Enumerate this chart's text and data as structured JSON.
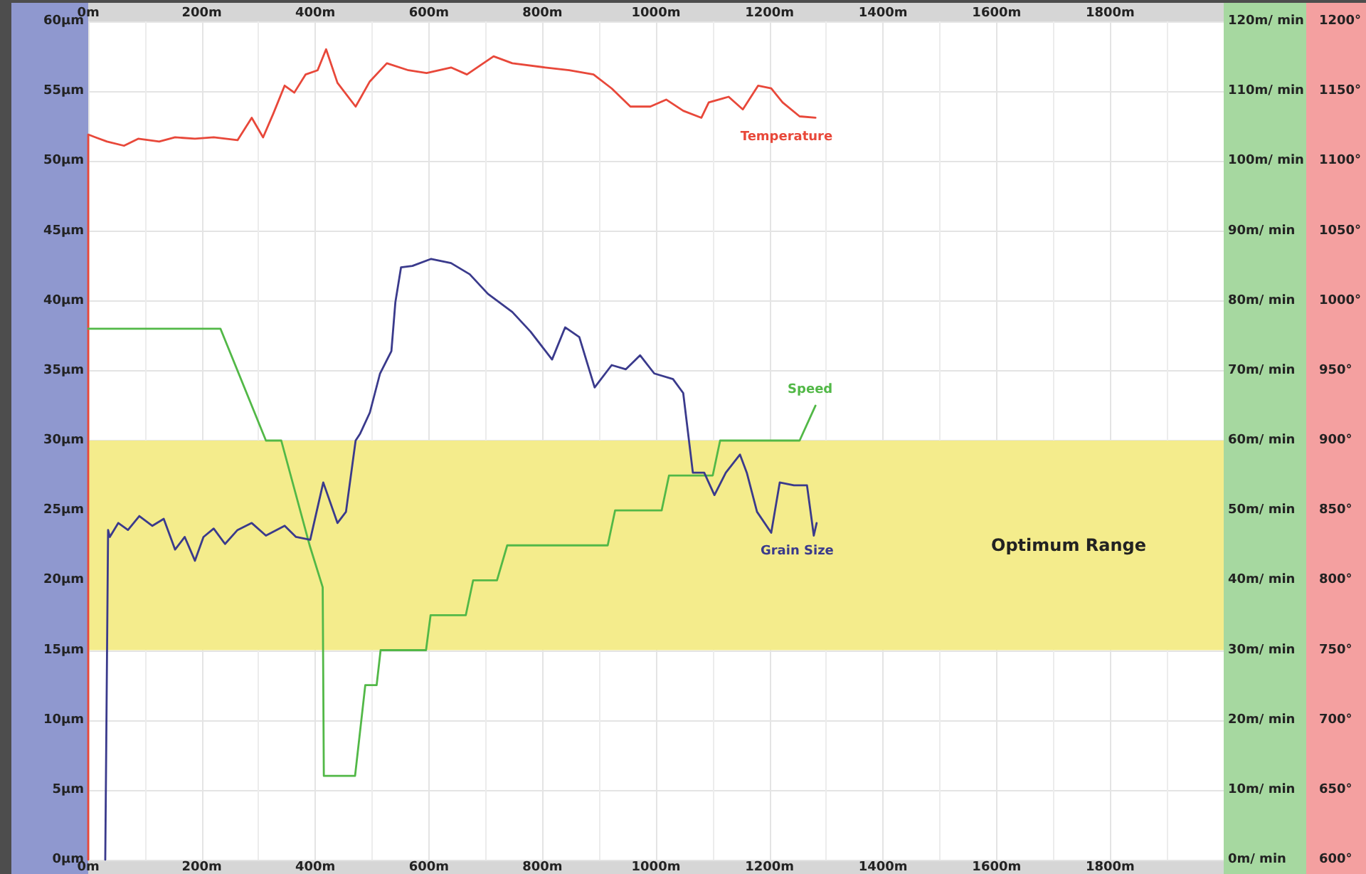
{
  "chart_data": {
    "type": "line",
    "xlim": [
      0,
      2000
    ],
    "xticks": [
      {
        "value": 0,
        "label": "0m"
      },
      {
        "value": 200,
        "label": "200m"
      },
      {
        "value": 400,
        "label": "400m"
      },
      {
        "value": 600,
        "label": "600m"
      },
      {
        "value": 800,
        "label": "800m"
      },
      {
        "value": 1000,
        "label": "1000m"
      },
      {
        "value": 1200,
        "label": "1200m"
      },
      {
        "value": 1400,
        "label": "1400m"
      },
      {
        "value": 1600,
        "label": "1600m"
      },
      {
        "value": 1800,
        "label": "1800m"
      }
    ],
    "x2lim": [
      0,
      2000
    ],
    "x2ticks": [
      {
        "value": 0,
        "label": "0m"
      },
      {
        "value": 200,
        "label": "200m"
      },
      {
        "value": 400,
        "label": "400m"
      },
      {
        "value": 600,
        "label": "600m"
      },
      {
        "value": 800,
        "label": "800m"
      },
      {
        "value": 1000,
        "label": "1000m"
      },
      {
        "value": 1200,
        "label": "1200m"
      },
      {
        "value": 1400,
        "label": "1400m"
      },
      {
        "value": 1600,
        "label": "1600m"
      },
      {
        "value": 1800,
        "label": "1800m"
      }
    ],
    "ylim": [
      0,
      60
    ],
    "yticks": [
      {
        "value": 0,
        "label": "0µm"
      },
      {
        "value": 5,
        "label": "5µm"
      },
      {
        "value": 10,
        "label": "10µm"
      },
      {
        "value": 15,
        "label": "15µm"
      },
      {
        "value": 20,
        "label": "20µm"
      },
      {
        "value": 25,
        "label": "25µm"
      },
      {
        "value": 30,
        "label": "30µm"
      },
      {
        "value": 35,
        "label": "35µm"
      },
      {
        "value": 40,
        "label": "40µm"
      },
      {
        "value": 45,
        "label": "45µm"
      },
      {
        "value": 50,
        "label": "50µm"
      },
      {
        "value": 55,
        "label": "55µm"
      },
      {
        "value": 60,
        "label": "60µm"
      }
    ],
    "y2lim": [
      0,
      120
    ],
    "y2ticks": [
      {
        "value": 0,
        "label": "0m/ min"
      },
      {
        "value": 10,
        "label": "10m/ min"
      },
      {
        "value": 20,
        "label": "20m/ min"
      },
      {
        "value": 30,
        "label": "30m/ min"
      },
      {
        "value": 40,
        "label": "40m/ min"
      },
      {
        "value": 50,
        "label": "50m/ min"
      },
      {
        "value": 60,
        "label": "60m/ min"
      },
      {
        "value": 70,
        "label": "70m/ min"
      },
      {
        "value": 80,
        "label": "80m/ min"
      },
      {
        "value": 90,
        "label": "90m/ min"
      },
      {
        "value": 100,
        "label": "100m/ min"
      },
      {
        "value": 110,
        "label": "110m/ min"
      },
      {
        "value": 120,
        "label": "120m/ min"
      }
    ],
    "y3lim": [
      600,
      1200
    ],
    "y3ticks": [
      {
        "value": 600,
        "label": "600°"
      },
      {
        "value": 650,
        "label": "650°"
      },
      {
        "value": 700,
        "label": "700°"
      },
      {
        "value": 750,
        "label": "750°"
      },
      {
        "value": 800,
        "label": "800°"
      },
      {
        "value": 850,
        "label": "850°"
      },
      {
        "value": 900,
        "label": "900°"
      },
      {
        "value": 950,
        "label": "950°"
      },
      {
        "value": 1000,
        "label": "1000°"
      },
      {
        "value": 1050,
        "label": "1050°"
      },
      {
        "value": 1100,
        "label": "1100°"
      },
      {
        "value": 1150,
        "label": "1150°"
      },
      {
        "value": 1200,
        "label": "1200°"
      }
    ],
    "bands": [
      {
        "axis": "y",
        "from": 15,
        "to": 30,
        "label": "Optimum Range",
        "color": "#f4ec8c"
      }
    ],
    "grid": true,
    "legend": false,
    "marker": "none",
    "line_style": "solid",
    "series": [
      {
        "name": "Temperature",
        "color": "#e8483a",
        "axis": "y3",
        "x": [
          0,
          0,
          13,
          33,
          63,
          88,
          125,
          153,
          188,
          221,
          263,
          288,
          308,
          326,
          346,
          363,
          383,
          404,
          419,
          439,
          471,
          496,
          526,
          564,
          596,
          639,
          667,
          714,
          747,
          805,
          847,
          890,
          922,
          955,
          990,
          1018,
          1048,
          1080,
          1093,
          1128,
          1153,
          1180,
          1203,
          1223,
          1253,
          1281
        ],
        "values": [
          600,
          1119,
          1117,
          1114,
          1111,
          1116,
          1114,
          1117,
          1116,
          1117,
          1115,
          1131,
          1117,
          1134,
          1154,
          1149,
          1162,
          1165,
          1180,
          1156,
          1139,
          1157,
          1170,
          1165,
          1163,
          1167,
          1162,
          1175,
          1170,
          1167,
          1165,
          1162,
          1152,
          1139,
          1139,
          1144,
          1136,
          1131,
          1142,
          1146,
          1137,
          1154,
          1152,
          1142,
          1132,
          1131
        ]
      },
      {
        "name": "Speed",
        "color": "#52b847",
        "axis": "y2",
        "x": [
          0,
          233,
          313,
          340,
          390,
          413,
          415,
          470,
          488,
          508,
          515,
          595,
          603,
          665,
          678,
          720,
          738,
          915,
          928,
          1010,
          1023,
          1100,
          1113,
          1253,
          1281
        ],
        "values": [
          76,
          76,
          60,
          60,
          45,
          39,
          12,
          12,
          25,
          25,
          30,
          30,
          35,
          35,
          40,
          40,
          45,
          45,
          50,
          50,
          55,
          55,
          60,
          60,
          65
        ]
      },
      {
        "name": "Grain Size",
        "color": "#3a3a8c",
        "axis": "y",
        "x": [
          30,
          35,
          38,
          53,
          70,
          90,
          113,
          133,
          153,
          170,
          188,
          203,
          221,
          241,
          263,
          288,
          313,
          346,
          366,
          391,
          414,
          439,
          454,
          471,
          479,
          496,
          514,
          534,
          541,
          551,
          571,
          604,
          639,
          672,
          704,
          747,
          779,
          817,
          840,
          865,
          892,
          922,
          947,
          972,
          997,
          1030,
          1048,
          1065,
          1085,
          1103,
          1123,
          1148,
          1160,
          1178,
          1203,
          1218,
          1243,
          1266,
          1278,
          1283
        ],
        "values": [
          0,
          23.6,
          23.1,
          24.1,
          23.6,
          24.6,
          23.9,
          24.4,
          22.2,
          23.1,
          21.4,
          23.1,
          23.7,
          22.6,
          23.6,
          24.1,
          23.2,
          23.9,
          23.1,
          22.9,
          27.0,
          24.1,
          24.9,
          30.0,
          30.5,
          32.0,
          34.8,
          36.4,
          39.9,
          42.4,
          42.5,
          43.0,
          42.7,
          41.9,
          40.5,
          39.2,
          37.8,
          35.8,
          38.1,
          37.4,
          33.8,
          35.4,
          35.1,
          36.1,
          34.8,
          34.4,
          33.4,
          27.7,
          27.7,
          26.1,
          27.7,
          29.0,
          27.7,
          24.9,
          23.4,
          27.0,
          26.8,
          26.8,
          23.2,
          24.1
        ]
      }
    ]
  }
}
